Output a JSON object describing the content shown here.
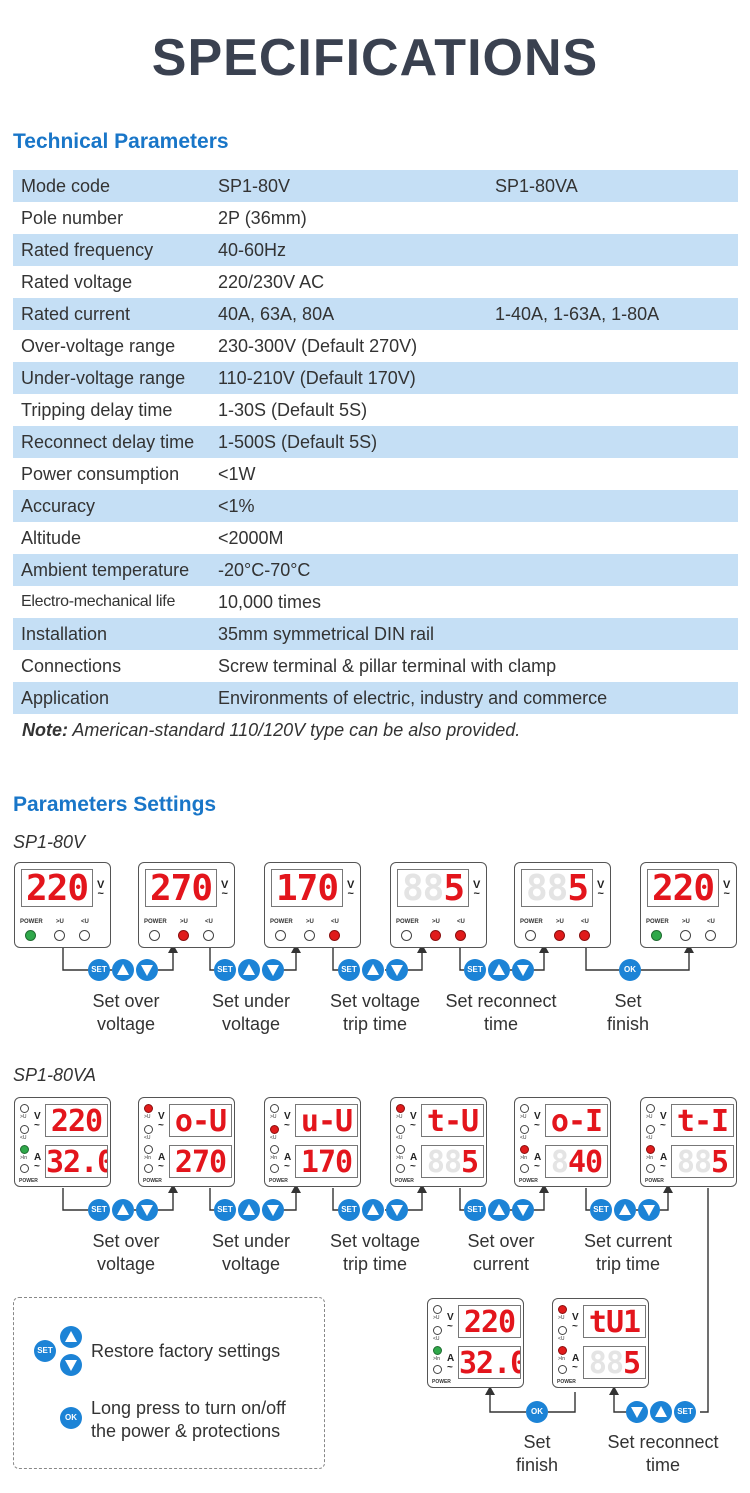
{
  "title": "SPECIFICATIONS",
  "tech_heading": "Technical Parameters",
  "table": [
    [
      "Mode code",
      "SP1-80V",
      "SP1-80VA"
    ],
    [
      "Pole number",
      "2P (36mm)",
      ""
    ],
    [
      "Rated frequency",
      "40-60Hz",
      ""
    ],
    [
      "Rated voltage",
      "220/230V AC",
      ""
    ],
    [
      "Rated current",
      "40A, 63A, 80A",
      "1-40A, 1-63A, 1-80A"
    ],
    [
      "Over-voltage range",
      "230-300V (Default 270V)",
      ""
    ],
    [
      "Under-voltage range",
      "110-210V (Default 170V)",
      ""
    ],
    [
      "Tripping delay time",
      "1-30S (Default 5S)",
      ""
    ],
    [
      "Reconnect delay time",
      "1-500S (Default 5S)",
      ""
    ],
    [
      "Power consumption",
      "<1W",
      ""
    ],
    [
      "Accuracy",
      "<1%",
      ""
    ],
    [
      "Altitude",
      "<2000M",
      ""
    ],
    [
      "Ambient temperature",
      "-20°C-70°C",
      ""
    ],
    [
      "Electro-mechanical life",
      "10,000 times",
      ""
    ],
    [
      "Installation",
      "35mm symmetrical DIN rail",
      ""
    ],
    [
      "Connections",
      "Screw terminal & pillar terminal with clamp",
      ""
    ],
    [
      "Application",
      "Environments of electric, industry and commerce",
      ""
    ]
  ],
  "note_label": "Note:",
  "note_text": " American-standard 110/120V type can be also provided.",
  "settings_heading": "Parameters Settings",
  "model_v": "SP1-80V",
  "model_va": "SP1-80VA",
  "labels": {
    "power": "POWER",
    "over_u": ">U",
    "under_u": "<U",
    "over_in": ">In",
    "unit_v": "V",
    "unit_a": "A",
    "tilde": "~"
  },
  "buttons": {
    "set": "SET",
    "ok": "OK"
  },
  "v_displays": [
    {
      "ghost": "",
      "lit": "220"
    },
    {
      "ghost": "",
      "lit": "270"
    },
    {
      "ghost": "",
      "lit": "170"
    },
    {
      "ghost": "88",
      "lit": "5"
    },
    {
      "ghost": "88",
      "lit": "5"
    },
    {
      "ghost": "",
      "lit": "220"
    }
  ],
  "v_captions": [
    [
      "Set over",
      "voltage"
    ],
    [
      "Set under",
      "voltage"
    ],
    [
      "Set voltage",
      "trip time"
    ],
    [
      "Set reconnect",
      "time"
    ],
    [
      "Set",
      "finish"
    ]
  ],
  "va_displays": [
    {
      "top": "220",
      "bottom": "32.0",
      "bottom_ghost": ""
    },
    {
      "top": "o-U",
      "bottom": "270",
      "bottom_ghost": ""
    },
    {
      "top": "u-U",
      "bottom": "170",
      "bottom_ghost": ""
    },
    {
      "top": "t-U",
      "bottom": "5",
      "bottom_ghost": "88"
    },
    {
      "top": "o-I",
      "bottom": "40",
      "bottom_ghost": "8"
    },
    {
      "top": "t-I",
      "bottom": "5",
      "bottom_ghost": "88"
    },
    {
      "top": "220",
      "bottom": "32.0",
      "bottom_ghost": ""
    },
    {
      "top": "tU1",
      "bottom": "5",
      "bottom_ghost": "88"
    }
  ],
  "va_captions": [
    [
      "Set over",
      "voltage"
    ],
    [
      "Set under",
      "voltage"
    ],
    [
      "Set voltage",
      "trip time"
    ],
    [
      "Set over",
      "current"
    ],
    [
      "Set current",
      "trip time"
    ],
    [
      "Set",
      "finish"
    ],
    [
      "Set reconnect",
      "time"
    ]
  ],
  "legend": {
    "restore": "Restore factory settings",
    "long_press_1": "Long press to turn on/off",
    "long_press_2": "the power & protections"
  },
  "colors": {
    "accent_blue": "#1976c8",
    "button_blue": "#1c83d6",
    "row_blue": "#c5dff5",
    "led_red": "#e01b1b",
    "led_green": "#2fa84a",
    "digit_red": "#e3151c"
  }
}
